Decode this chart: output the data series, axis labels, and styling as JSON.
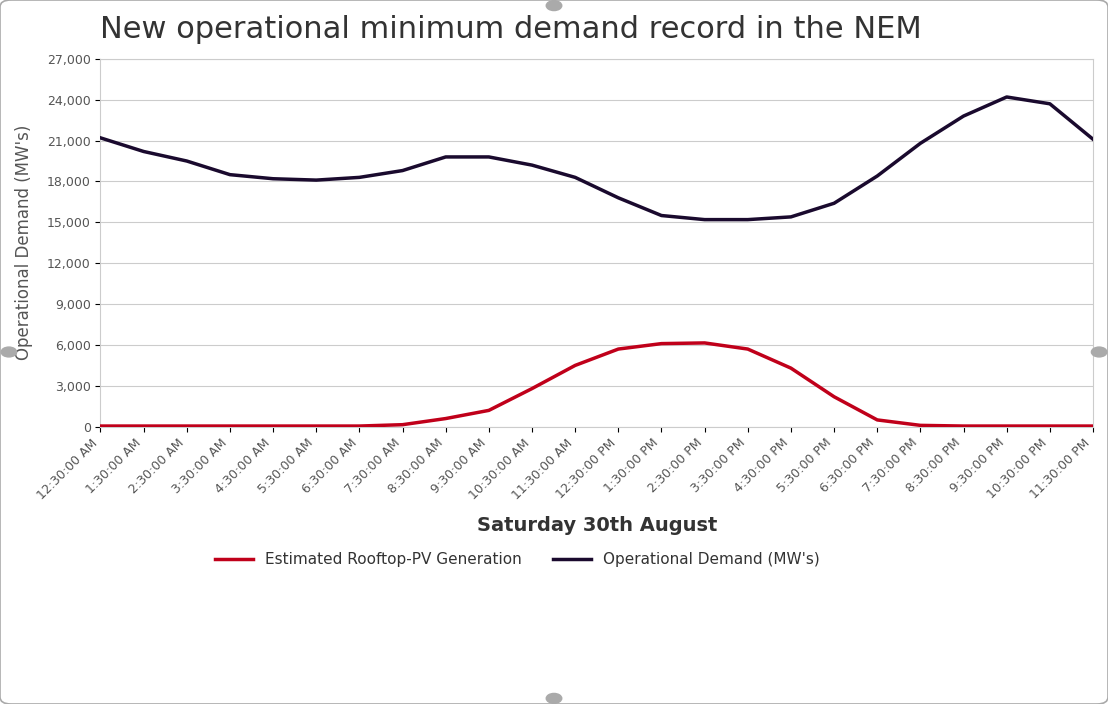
{
  "title": "New operational minimum demand record in the NEM",
  "xlabel": "Saturday 30th August",
  "ylabel": "Operational Demand (MW's)",
  "ylim": [
    0,
    27000
  ],
  "yticks": [
    0,
    3000,
    6000,
    9000,
    12000,
    15000,
    18000,
    21000,
    24000,
    27000
  ],
  "ytick_labels": [
    "0",
    "3,000",
    "6,000",
    "9,000",
    "12,000",
    "15,000",
    "18,000",
    "21,000",
    "24,000",
    "27,000"
  ],
  "xtick_labels": [
    "12:30:00 AM",
    "1:30:00 AM",
    "2:30:00 AM",
    "3:30:00 AM",
    "4:30:00 AM",
    "5:30:00 AM",
    "6:30:00 AM",
    "7:30:00 AM",
    "8:30:00 AM",
    "9:30:00 AM",
    "10:30:00 AM",
    "11:30:00 AM",
    "12:30:00 PM",
    "1:30:00 PM",
    "2:30:00 PM",
    "3:30:00 PM",
    "4:30:00 PM",
    "5:30:00 PM",
    "6:30:00 PM",
    "7:30:00 PM",
    "8:30:00 PM",
    "9:30:00 PM",
    "10:30:00 PM",
    "11:30:00 PM"
  ],
  "demand_color": "#1a0a2e",
  "pv_color": "#c0001a",
  "demand_values": [
    21200,
    20200,
    19500,
    18500,
    18200,
    18100,
    18300,
    18800,
    19800,
    19800,
    19200,
    18300,
    16800,
    15500,
    15200,
    15200,
    15400,
    16400,
    18400,
    20800,
    22800,
    24200,
    23700,
    21100
  ],
  "pv_values": [
    50,
    50,
    50,
    50,
    50,
    50,
    50,
    150,
    600,
    1200,
    2800,
    4500,
    5700,
    6100,
    6150,
    5700,
    4300,
    2200,
    500,
    100,
    50,
    50,
    50,
    50
  ],
  "legend_demand_label": "Operational Demand (MW's)",
  "legend_pv_label": "Estimated Rooftop-PV Generation",
  "background_color": "#ffffff",
  "grid_color": "#cccccc",
  "title_fontsize": 22,
  "axis_label_fontsize": 12,
  "tick_fontsize": 9,
  "legend_fontsize": 11,
  "line_width": 2.5
}
